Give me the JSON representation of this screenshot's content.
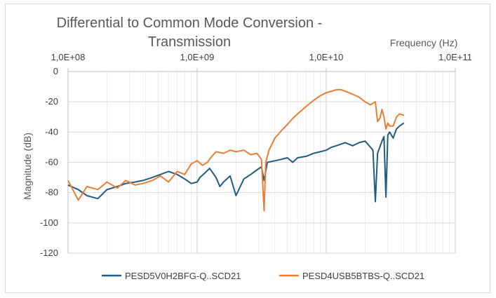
{
  "chart_data": {
    "type": "line",
    "title_lines": [
      "Differential to Common Mode Conversion -",
      "Transmission"
    ],
    "xlabel": "Frequency (Hz)",
    "ylabel": "Magnitude (dB)",
    "x_scale": "log",
    "xlim": [
      100000000,
      100000000000
    ],
    "ylim": [
      -120,
      0
    ],
    "x_tick_values": [
      100000000,
      1000000000,
      10000000000,
      100000000000
    ],
    "x_tick_labels": [
      "1,0E+08",
      "1,0E+09",
      "1,0E+10",
      "1,0E+11"
    ],
    "y_ticks": [
      0,
      -20,
      -40,
      -60,
      -80,
      -100,
      -120
    ],
    "grid": true,
    "legend": "bottom",
    "series": [
      {
        "name": "PESD5V0H2BFG-Q..SCD21",
        "color": "#1f5c82",
        "x": [
          100000000,
          120000000,
          140000000,
          170000000,
          200000000,
          240000000,
          280000000,
          330000000,
          380000000,
          450000000,
          520000000,
          600000000,
          700000000,
          800000000,
          900000000,
          1000000000,
          1050000000,
          1150000000,
          1250000000,
          1400000000,
          1500000000,
          1600000000,
          1800000000,
          2000000000,
          2300000000,
          2600000000,
          2900000000,
          3150000000,
          3300000000,
          3500000000,
          4000000000,
          4500000000,
          5000000000,
          5500000000,
          6000000000,
          7000000000,
          8000000000,
          9000000000,
          10000000000,
          11000000000,
          12000000000,
          13000000000,
          14000000000,
          16000000000,
          18000000000,
          20000000000,
          21000000000,
          22000000000,
          23000000000,
          24000000000,
          25000000000,
          26000000000,
          27000000000,
          28000000000,
          29000000000,
          30000000000,
          31000000000,
          33000000000,
          35000000000,
          37000000000,
          40000000000
        ],
        "y": [
          -75,
          -78,
          -82,
          -84,
          -78,
          -76,
          -74,
          -73,
          -72,
          -70,
          -68,
          -66,
          -68,
          -71,
          -74,
          -73,
          -70,
          -67,
          -64,
          -70,
          -76,
          -73,
          -69,
          -82,
          -71,
          -68,
          -65,
          -63,
          -72,
          -60,
          -59,
          -58,
          -57,
          -60,
          -57,
          -56,
          -54,
          -53,
          -52,
          -50,
          -49,
          -48,
          -47,
          -49,
          -47,
          -46,
          -48,
          -50,
          -52,
          -86,
          -54,
          -50,
          -46,
          -43,
          -83,
          -42,
          -40,
          -44,
          -38,
          -36,
          -34
        ]
      },
      {
        "name": "PESD4USB5BTBS-Q..SCD21",
        "color": "#ed7d31",
        "x": [
          100000000,
          120000000,
          140000000,
          170000000,
          200000000,
          240000000,
          280000000,
          330000000,
          380000000,
          450000000,
          520000000,
          600000000,
          700000000,
          800000000,
          900000000,
          1000000000,
          1100000000,
          1200000000,
          1300000000,
          1400000000,
          1600000000,
          1800000000,
          2000000000,
          2300000000,
          2600000000,
          2900000000,
          3150000000,
          3300000000,
          3400000000,
          3600000000,
          4000000000,
          4500000000,
          5000000000,
          5500000000,
          6000000000,
          7000000000,
          8000000000,
          9000000000,
          10000000000,
          11000000000,
          12000000000,
          13000000000,
          14000000000,
          16000000000,
          18000000000,
          20000000000,
          22000000000,
          24000000000,
          25000000000,
          26000000000,
          27000000000,
          28000000000,
          29000000000,
          30000000000,
          31000000000,
          33000000000,
          35000000000,
          37000000000,
          40000000000
        ],
        "y": [
          -72,
          -85,
          -76,
          -78,
          -73,
          -77,
          -72,
          -75,
          -74,
          -72,
          -69,
          -73,
          -66,
          -68,
          -61,
          -59,
          -62,
          -60,
          -56,
          -53,
          -54,
          -52,
          -53,
          -52,
          -55,
          -54,
          -58,
          -92,
          -60,
          -52,
          -44,
          -39,
          -35,
          -31,
          -28,
          -23,
          -19,
          -16,
          -14,
          -13,
          -12,
          -12,
          -13,
          -15,
          -17,
          -20,
          -22,
          -20,
          -33,
          -31,
          -25,
          -30,
          -38,
          -34,
          -36,
          -36,
          -30,
          -28,
          -29
        ]
      }
    ]
  }
}
